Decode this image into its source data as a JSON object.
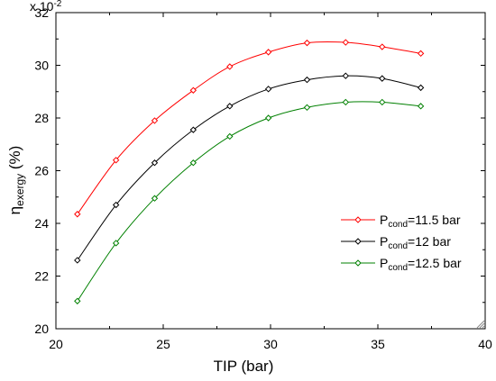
{
  "chart_data": {
    "type": "line",
    "multiplier_label": "x 10",
    "multiplier_exponent": "-2",
    "xlabel": "TIP (bar)",
    "ylabel_main": "η",
    "ylabel_sub": "exergy",
    "ylabel_unit": " (%)",
    "xlim": [
      20,
      40
    ],
    "ylim": [
      20,
      32
    ],
    "xticks": [
      20,
      25,
      30,
      35,
      40
    ],
    "yticks": [
      20,
      22,
      24,
      26,
      28,
      30,
      32
    ],
    "grid": false,
    "legend_position": "lower-right",
    "x": [
      21.0,
      22.8,
      24.6,
      26.4,
      28.1,
      29.9,
      31.7,
      33.5,
      35.2,
      37.0
    ],
    "series": [
      {
        "legend_prefix": "P",
        "legend_sub": "cond",
        "legend_suffix": "=11.5 bar",
        "color": "#ff0000",
        "values": [
          24.35,
          26.4,
          27.9,
          29.05,
          29.95,
          30.5,
          30.85,
          30.87,
          30.7,
          30.45
        ]
      },
      {
        "legend_prefix": "P",
        "legend_sub": "cond",
        "legend_suffix": "=12 bar",
        "color": "#000000",
        "values": [
          22.6,
          24.7,
          26.3,
          27.55,
          28.45,
          29.1,
          29.45,
          29.6,
          29.5,
          29.15
        ]
      },
      {
        "legend_prefix": "P",
        "legend_sub": "cond",
        "legend_suffix": "=12.5 bar",
        "color": "#008000",
        "values": [
          21.05,
          23.25,
          24.95,
          26.3,
          27.3,
          28.0,
          28.4,
          28.6,
          28.6,
          28.45
        ]
      }
    ]
  }
}
